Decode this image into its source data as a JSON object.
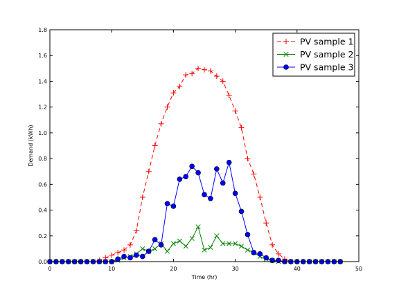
{
  "chart_data": {
    "type": "line",
    "title": "",
    "xlabel": "Time (hr)",
    "ylabel": "Demand (kWh)",
    "xlim": [
      0,
      50
    ],
    "ylim": [
      0,
      1.8
    ],
    "x_ticks": [
      "0",
      "10",
      "20",
      "30",
      "40",
      "50"
    ],
    "y_ticks": [
      "0.0",
      "0.2",
      "0.4",
      "0.6",
      "0.8",
      "1.0",
      "1.2",
      "1.4",
      "1.6",
      "1.8"
    ],
    "grid": false,
    "legend_position": "top-right",
    "x": [
      0,
      1,
      2,
      3,
      4,
      5,
      6,
      7,
      8,
      9,
      10,
      11,
      12,
      13,
      14,
      15,
      16,
      17,
      18,
      19,
      20,
      21,
      22,
      23,
      24,
      25,
      26,
      27,
      28,
      29,
      30,
      31,
      32,
      33,
      34,
      35,
      36,
      37,
      38,
      39,
      40,
      41,
      42,
      43,
      44,
      45,
      46,
      47
    ],
    "series": [
      {
        "name": "PV sample 1",
        "color": "#ff0000",
        "marker": "plus",
        "line": "dashed",
        "values": [
          0,
          0,
          0,
          0,
          0,
          0,
          0,
          0,
          0.01,
          0.03,
          0.05,
          0.07,
          0.09,
          0.13,
          0.24,
          0.5,
          0.7,
          0.9,
          1.07,
          1.2,
          1.31,
          1.36,
          1.45,
          1.46,
          1.5,
          1.49,
          1.48,
          1.44,
          1.4,
          1.29,
          1.17,
          1.04,
          0.8,
          0.68,
          0.5,
          0.3,
          0.13,
          0.06,
          0.02,
          0,
          0,
          0,
          0,
          0,
          0,
          0,
          0,
          0
        ]
      },
      {
        "name": "PV sample 2",
        "color": "#008000",
        "marker": "x",
        "line": "solid",
        "values": [
          0,
          0,
          0,
          0,
          0,
          0,
          0,
          0,
          0,
          0,
          0,
          0.01,
          0.03,
          0.04,
          0.06,
          0.1,
          0.08,
          0.1,
          0.14,
          0.08,
          0.14,
          0.16,
          0.12,
          0.18,
          0.27,
          0.09,
          0.11,
          0.2,
          0.14,
          0.14,
          0.14,
          0.12,
          0.09,
          0.07,
          0.04,
          0.02,
          0.01,
          0,
          0,
          0,
          0,
          0,
          0,
          0,
          0,
          0,
          0,
          0
        ]
      },
      {
        "name": "PV sample 3",
        "color": "#0000ff",
        "marker": "circle",
        "line": "solid",
        "values": [
          0,
          0,
          0,
          0,
          0,
          0,
          0,
          0,
          0,
          0,
          0,
          0.02,
          0.04,
          0.03,
          0.05,
          0.04,
          0.08,
          0.17,
          0.13,
          0.45,
          0.43,
          0.64,
          0.66,
          0.74,
          0.69,
          0.52,
          0.49,
          0.72,
          0.61,
          0.77,
          0.53,
          0.39,
          0.21,
          0.07,
          0.06,
          0.03,
          0.01,
          0.01,
          0,
          0,
          0,
          0,
          0,
          0,
          0,
          0,
          0,
          0
        ]
      }
    ]
  }
}
